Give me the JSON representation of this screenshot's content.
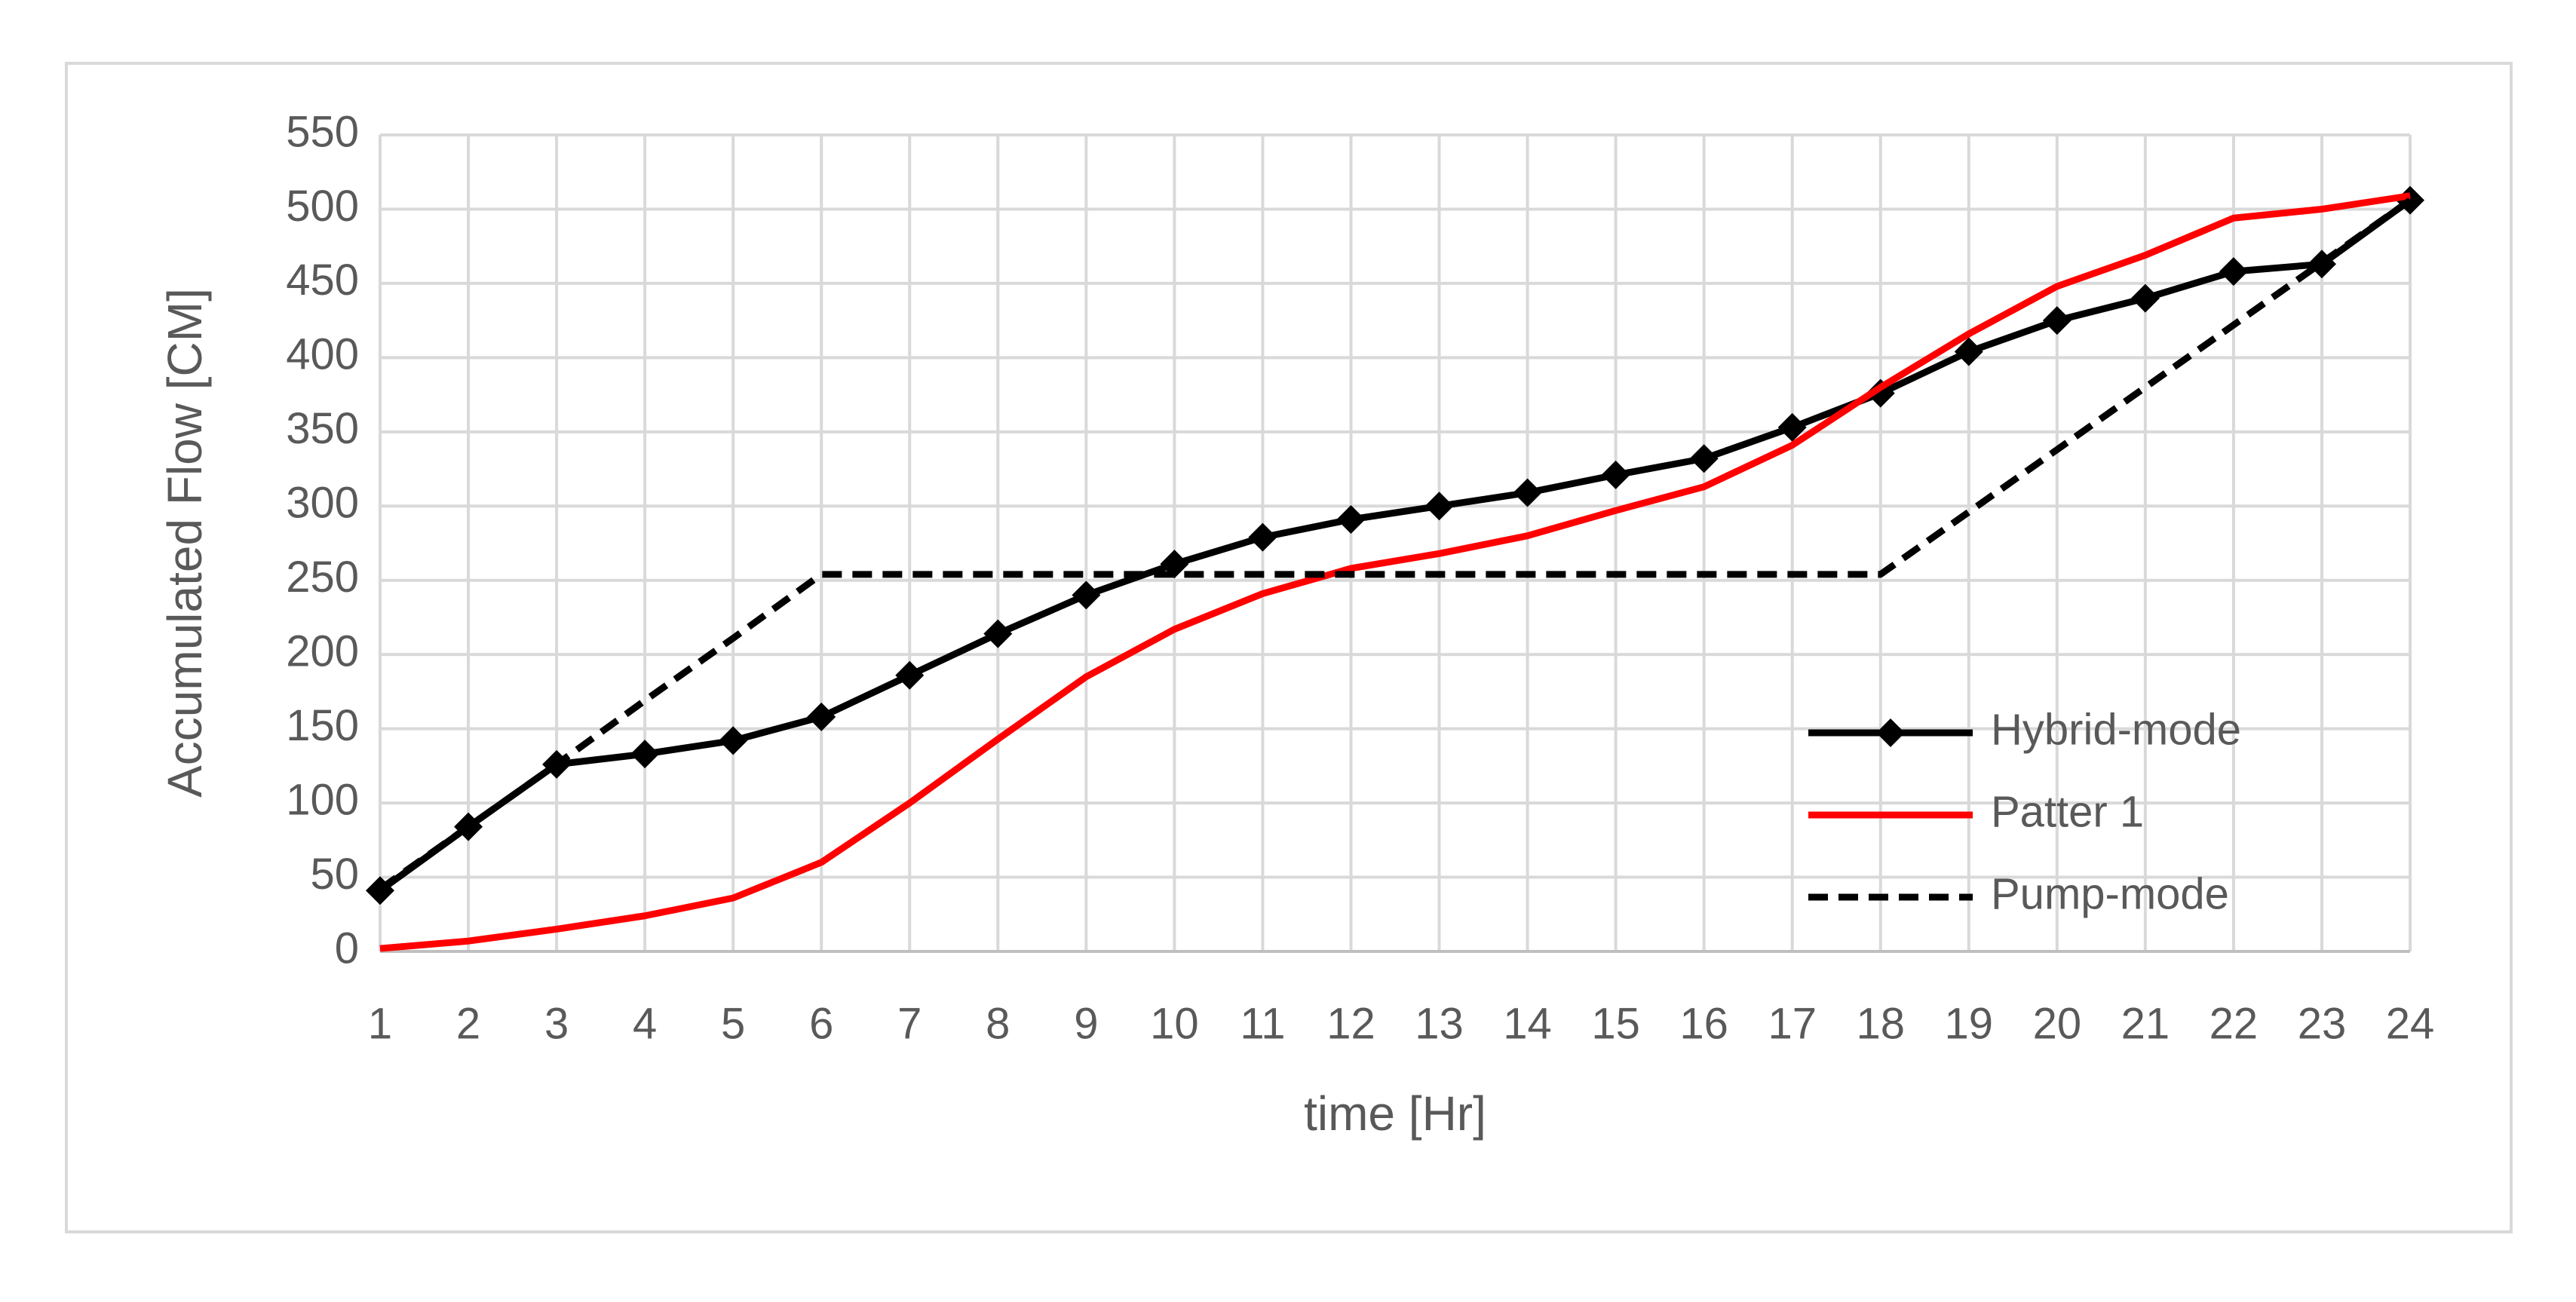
{
  "chart_data": {
    "type": "line",
    "x_label": "time [Hr]",
    "y_label": "Accumulated Flow [CM]",
    "x": [
      1,
      2,
      3,
      4,
      5,
      6,
      7,
      8,
      9,
      10,
      11,
      12,
      13,
      14,
      15,
      16,
      17,
      18,
      19,
      20,
      21,
      22,
      23,
      24
    ],
    "xlim": [
      1,
      24
    ],
    "xticks": [
      1,
      2,
      3,
      4,
      5,
      6,
      7,
      8,
      9,
      10,
      11,
      12,
      13,
      14,
      15,
      16,
      17,
      18,
      19,
      20,
      21,
      22,
      23,
      24
    ],
    "ylim": [
      0,
      550
    ],
    "yticks": [
      0,
      50,
      100,
      150,
      200,
      250,
      300,
      350,
      400,
      450,
      500,
      550
    ],
    "grid": true,
    "legend": "right",
    "series": [
      {
        "name": "Hybrid-mode",
        "color": "#000000",
        "marker": "diamond",
        "dash": "solid",
        "values": [
          41,
          84,
          126,
          133,
          142,
          158,
          186,
          214,
          240,
          261,
          279,
          291,
          300,
          309,
          321,
          332,
          353,
          376,
          404,
          425,
          440,
          458,
          463,
          506
        ]
      },
      {
        "name": "Patter 1",
        "color": "#ff0000",
        "marker": "none",
        "dash": "solid",
        "values": [
          2,
          7,
          15,
          24,
          36,
          60,
          100,
          143,
          185,
          217,
          241,
          258,
          268,
          280,
          297,
          313,
          341,
          380,
          416,
          448,
          469,
          494,
          500,
          509
        ]
      },
      {
        "name": "Pump-mode",
        "color": "#000000",
        "marker": "none",
        "dash": "dashed",
        "values": [
          42,
          84,
          126,
          169,
          211,
          254,
          254,
          254,
          254,
          254,
          254,
          254,
          254,
          254,
          254,
          254,
          254,
          254,
          296,
          338,
          380,
          422,
          464,
          506
        ]
      }
    ]
  }
}
